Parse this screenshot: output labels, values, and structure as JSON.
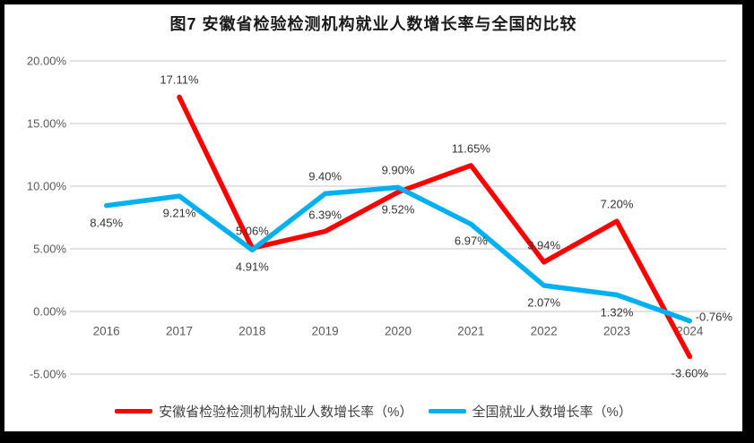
{
  "chart_data": {
    "type": "line",
    "title": "图7 安徽省检验检测机构就业人数增长率与全国的比较",
    "categories": [
      "2016",
      "2017",
      "2018",
      "2019",
      "2020",
      "2021",
      "2022",
      "2023",
      "2024"
    ],
    "series": [
      {
        "name": "安徽省检验检测机构就业人数增长率（%）",
        "color": "#ff0000",
        "values": [
          null,
          17.11,
          5.06,
          6.39,
          9.52,
          11.65,
          3.94,
          7.2,
          -3.6
        ],
        "point_labels": [
          "",
          "17.11%",
          "5.06%",
          "6.39%",
          "9.52%",
          "11.65%",
          "3.94%",
          "7.20%",
          "-3.60%"
        ],
        "label_positions": [
          null,
          "above",
          "above",
          "above",
          "below",
          "above",
          "above",
          "above",
          "below"
        ]
      },
      {
        "name": "全国就业人数增长率（%）",
        "color": "#00b0f0",
        "values": [
          8.45,
          9.21,
          4.91,
          9.4,
          9.9,
          6.97,
          2.07,
          1.32,
          -0.76
        ],
        "point_labels": [
          "8.45%",
          "9.21%",
          "4.91%",
          "9.40%",
          "9.90%",
          "6.97%",
          "2.07%",
          "1.32%",
          "-0.76%"
        ],
        "label_positions": [
          "below",
          "below",
          "below",
          "above",
          "above",
          "below",
          "below",
          "below",
          "right"
        ]
      }
    ],
    "y_axis": {
      "tick_labels": [
        "20.00%",
        "15.00%",
        "10.00%",
        "5.00%",
        "0.00%",
        "-5.00%"
      ],
      "tick_values": [
        20,
        15,
        10,
        5,
        0,
        -5
      ],
      "min": -5,
      "max": 20,
      "grid": true,
      "gridline_color": "#d9d9d9"
    },
    "legend_position": "bottom",
    "line_width": 5.5
  }
}
